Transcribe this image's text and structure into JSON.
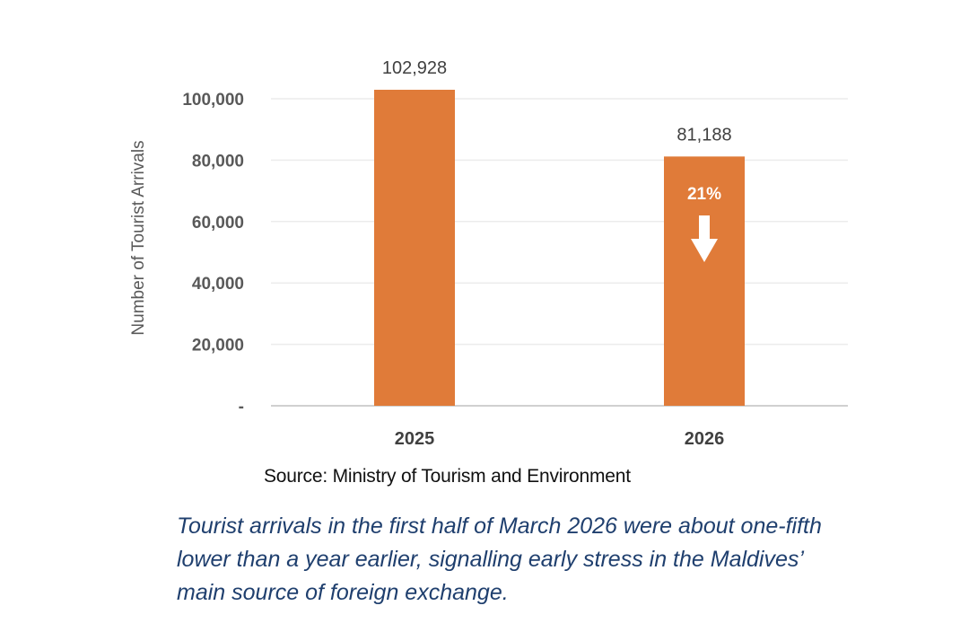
{
  "chart_data": {
    "type": "bar",
    "categories": [
      "2025",
      "2026"
    ],
    "values": [
      102928,
      81188
    ],
    "value_labels": [
      "102,928",
      "81,188"
    ],
    "ylabel": "Number of Tourist Arrivals",
    "ylim": [
      0,
      110000
    ],
    "yticks": [
      {
        "value": 0,
        "label": "-"
      },
      {
        "value": 20000,
        "label": "20,000"
      },
      {
        "value": 40000,
        "label": "40,000"
      },
      {
        "value": 60000,
        "label": "60,000"
      },
      {
        "value": 80000,
        "label": "80,000"
      },
      {
        "value": 100000,
        "label": "100,000"
      }
    ],
    "grid": true,
    "bar_color": "#E07B39",
    "annotation": {
      "text": "21%",
      "direction": "down",
      "category": "2026"
    }
  },
  "source": "Source: Ministry of Tourism and Environment",
  "caption": {
    "lines": [
      "Tourist arrivals in the first half of March 2026 were about one-fifth",
      "lower than a year earlier, signalling early stress in the Maldives’",
      "main source of foreign exchange."
    ]
  }
}
